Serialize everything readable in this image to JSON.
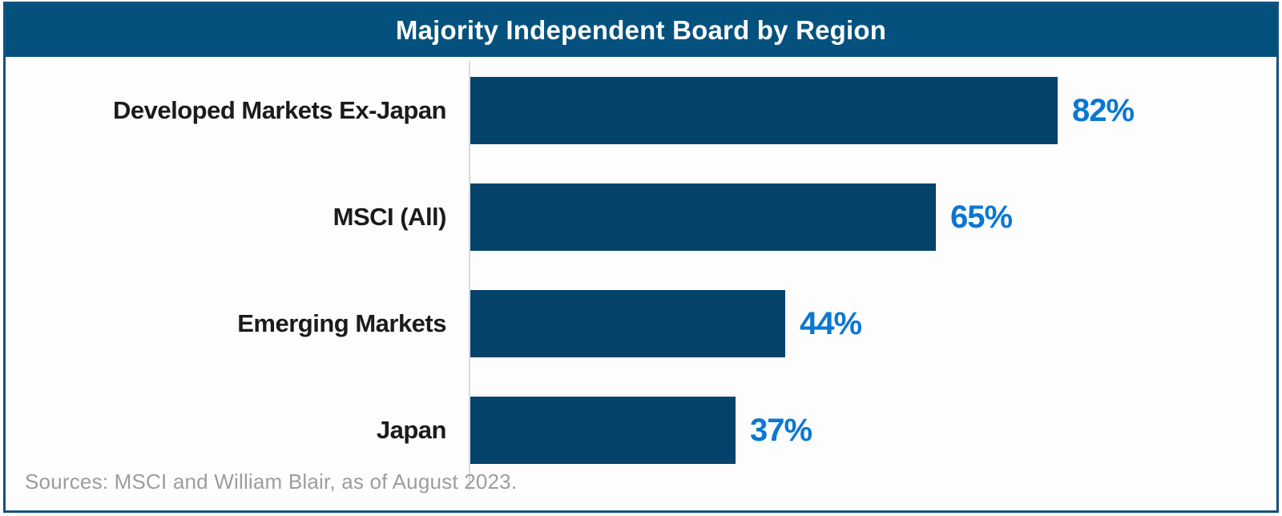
{
  "header": {
    "title": "Majority Independent Board by Region"
  },
  "source_note": "Sources: MSCI and William Blair, as of August 2023.",
  "colors": {
    "header_bg": "#04517E",
    "card_border": "#14517D",
    "bar_fill": "#05436B",
    "value_label": "#0B77D2",
    "category_label": "#1B1B1B",
    "axis_line": "#D9D9D9",
    "source_text": "#9B9DA0",
    "title_text": "#FFFFFF",
    "chart_bg": "#FDFDFE"
  },
  "chart_data": {
    "type": "bar",
    "orientation": "horizontal",
    "title": "Majority Independent Board by Region",
    "categories": [
      "Developed Markets Ex-Japan",
      "MSCI (All)",
      "Emerging Markets",
      "Japan"
    ],
    "values": [
      82,
      65,
      44,
      37
    ],
    "value_labels": [
      "82%",
      "65%",
      "44%",
      "37%"
    ],
    "xlabel": "",
    "ylabel": "",
    "xlim": [
      0,
      100
    ],
    "grid": false,
    "legend": false,
    "bar_color": "#05436B",
    "value_label_color": "#0B77D2",
    "source": "Sources: MSCI and William Blair, as of August 2023."
  }
}
